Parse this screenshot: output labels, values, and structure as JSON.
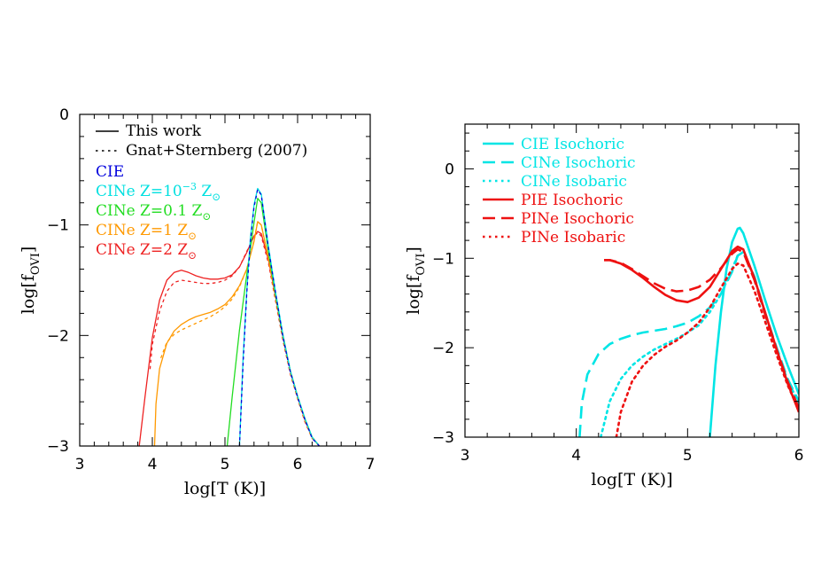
{
  "chart_data": [
    {
      "type": "line",
      "xlabel": "log[T (K)]",
      "ylabel": "log[f",
      "ylabel_sub": "OVI",
      "ylabel_close": "]",
      "xlim": [
        3,
        7
      ],
      "ylim": [
        -3,
        0
      ],
      "xticks": [
        3,
        4,
        5,
        6,
        7
      ],
      "yticks": [
        0,
        -1,
        -2,
        -3
      ],
      "legend": {
        "style_entries": [
          {
            "label": "This work",
            "dash": "solid",
            "color": "#000000"
          },
          {
            "label": "Gnat+Sternberg (2007)",
            "dash": "dotted",
            "color": "#000000"
          }
        ],
        "color_entries": [
          {
            "label": "CIE",
            "color": "#0000dd"
          },
          {
            "label": "CINe Z=10",
            "sup": "−3",
            "tail": " Z",
            "sun": "⊙",
            "color": "#00e0e0"
          },
          {
            "label": "CINe Z=0.1 Z",
            "sun": "⊙",
            "color": "#22dd22"
          },
          {
            "label": "CINe Z=1 Z",
            "sun": "⊙",
            "color": "#ff9900"
          },
          {
            "label": "CINe Z=2 Z",
            "sun": "⊙",
            "color": "#ee2222"
          }
        ]
      },
      "series": [
        {
          "color": "#ee2222",
          "dash": "solid",
          "x": [
            3.82,
            3.9,
            4.0,
            4.1,
            4.2,
            4.3,
            4.4,
            4.5,
            4.6,
            4.7,
            4.8,
            4.9,
            5.0,
            5.1,
            5.2,
            5.3,
            5.4,
            5.45,
            5.5,
            5.6,
            5.7,
            5.8,
            5.9,
            6.0,
            6.1,
            6.2,
            6.3
          ],
          "y": [
            -3.0,
            -2.55,
            -2.02,
            -1.68,
            -1.5,
            -1.43,
            -1.41,
            -1.43,
            -1.46,
            -1.48,
            -1.49,
            -1.49,
            -1.48,
            -1.45,
            -1.38,
            -1.25,
            -1.1,
            -1.06,
            -1.08,
            -1.32,
            -1.66,
            -2.02,
            -2.32,
            -2.55,
            -2.76,
            -2.92,
            -3.0
          ]
        },
        {
          "color": "#ee2222",
          "dash": "dotted",
          "x": [
            3.97,
            4.0,
            4.1,
            4.2,
            4.3,
            4.4,
            4.5,
            4.6,
            4.7,
            4.8,
            4.9,
            5.0,
            5.1,
            5.2,
            5.3,
            5.4,
            5.45,
            5.5,
            5.6,
            5.7,
            5.8,
            5.9,
            6.0,
            6.1,
            6.2,
            6.3
          ],
          "y": [
            -2.3,
            -2.08,
            -1.78,
            -1.6,
            -1.52,
            -1.5,
            -1.51,
            -1.52,
            -1.53,
            -1.53,
            -1.52,
            -1.5,
            -1.46,
            -1.38,
            -1.24,
            -1.1,
            -1.07,
            -1.1,
            -1.35,
            -1.7,
            -2.05,
            -2.35,
            -2.57,
            -2.78,
            -2.93,
            -3.0
          ]
        },
        {
          "color": "#ff9900",
          "dash": "solid",
          "x": [
            4.03,
            4.05,
            4.1,
            4.2,
            4.3,
            4.4,
            4.5,
            4.6,
            4.7,
            4.8,
            4.9,
            5.0,
            5.1,
            5.2,
            5.3,
            5.4,
            5.45,
            5.5,
            5.6,
            5.7,
            5.8,
            5.9,
            6.0,
            6.1,
            6.2,
            6.3
          ],
          "y": [
            -3.0,
            -2.62,
            -2.3,
            -2.07,
            -1.96,
            -1.9,
            -1.86,
            -1.83,
            -1.81,
            -1.79,
            -1.76,
            -1.72,
            -1.65,
            -1.55,
            -1.4,
            -1.15,
            -0.97,
            -1.0,
            -1.3,
            -1.65,
            -2.0,
            -2.32,
            -2.55,
            -2.76,
            -2.92,
            -3.0
          ]
        },
        {
          "color": "#ff9900",
          "dash": "dotted",
          "x": [
            4.12,
            4.2,
            4.3,
            4.4,
            4.5,
            4.6,
            4.7,
            4.8,
            4.9,
            5.0,
            5.1,
            5.2,
            5.3,
            5.4,
            5.45,
            5.5,
            5.6,
            5.7,
            5.8,
            5.9,
            6.0,
            6.1,
            6.2,
            6.3
          ],
          "y": [
            -2.2,
            -2.06,
            -1.99,
            -1.95,
            -1.92,
            -1.89,
            -1.86,
            -1.83,
            -1.79,
            -1.74,
            -1.67,
            -1.56,
            -1.4,
            -1.14,
            -0.97,
            -1.0,
            -1.32,
            -1.68,
            -2.03,
            -2.34,
            -2.57,
            -2.77,
            -2.93,
            -3.0
          ]
        },
        {
          "color": "#22dd22",
          "dash": "solid",
          "x": [
            5.03,
            5.1,
            5.2,
            5.3,
            5.4,
            5.45,
            5.5,
            5.6,
            5.7,
            5.8,
            5.9,
            6.0,
            6.1,
            6.2,
            6.3
          ],
          "y": [
            -3.0,
            -2.55,
            -1.95,
            -1.45,
            -0.98,
            -0.76,
            -0.8,
            -1.25,
            -1.65,
            -2.02,
            -2.32,
            -2.55,
            -2.75,
            -2.92,
            -3.0
          ]
        },
        {
          "color": "#00e0e0",
          "dash": "solid",
          "x": [
            5.2,
            5.25,
            5.3,
            5.35,
            5.4,
            5.45,
            5.5,
            5.6,
            5.7,
            5.8,
            5.9,
            6.0,
            6.1,
            6.2,
            6.3
          ],
          "y": [
            -3.0,
            -2.2,
            -1.6,
            -1.12,
            -0.82,
            -0.67,
            -0.72,
            -1.2,
            -1.62,
            -2.0,
            -2.32,
            -2.55,
            -2.75,
            -2.92,
            -3.0
          ]
        },
        {
          "color": "#0000dd",
          "dash": "dotted",
          "x": [
            5.2,
            5.25,
            5.3,
            5.35,
            5.4,
            5.45,
            5.5,
            5.6,
            5.7,
            5.8,
            5.9,
            6.0,
            6.1,
            6.2,
            6.3
          ],
          "y": [
            -3.0,
            -2.25,
            -1.62,
            -1.15,
            -0.84,
            -0.68,
            -0.73,
            -1.22,
            -1.63,
            -2.02,
            -2.33,
            -2.56,
            -2.76,
            -2.93,
            -3.0
          ]
        }
      ]
    },
    {
      "type": "line",
      "xlabel": "log[T (K)]",
      "ylabel": "log[f",
      "ylabel_sub": "OVI",
      "ylabel_close": "]",
      "xlim": [
        3,
        6
      ],
      "ylim": [
        -3,
        0.5
      ],
      "xticks": [
        3,
        4,
        5,
        6
      ],
      "yticks": [
        0,
        -1,
        -2,
        -3
      ],
      "legend": {
        "entries": [
          {
            "label": "CIE Isochoric",
            "color": "#00e5e5",
            "dash": "solid"
          },
          {
            "label": "CINe Isochoric",
            "color": "#00e5e5",
            "dash": "dashed"
          },
          {
            "label": "CINe Isobaric",
            "color": "#00e5e5",
            "dash": "dotted"
          },
          {
            "label": "PIE Isochoric",
            "color": "#ee1111",
            "dash": "solid"
          },
          {
            "label": "PINe Isochoric",
            "color": "#ee1111",
            "dash": "dashed"
          },
          {
            "label": "PINe Isobaric",
            "color": "#ee1111",
            "dash": "dotted"
          }
        ]
      },
      "series": [
        {
          "color": "#00e5e5",
          "dash": "solid",
          "x": [
            5.2,
            5.25,
            5.3,
            5.35,
            5.4,
            5.45,
            5.47,
            5.5,
            5.6,
            5.7,
            5.8,
            5.9,
            6.0
          ],
          "y": [
            -3.0,
            -2.2,
            -1.6,
            -1.12,
            -0.82,
            -0.67,
            -0.66,
            -0.72,
            -1.08,
            -1.48,
            -1.86,
            -2.2,
            -2.52
          ]
        },
        {
          "color": "#00e5e5",
          "dash": "dashed",
          "x": [
            4.03,
            4.05,
            4.1,
            4.2,
            4.3,
            4.4,
            4.5,
            4.6,
            4.7,
            4.8,
            4.9,
            5.0,
            5.1,
            5.2,
            5.3,
            5.4,
            5.45,
            5.5,
            5.6,
            5.7,
            5.8,
            5.9,
            6.0
          ],
          "y": [
            -3.0,
            -2.62,
            -2.3,
            -2.07,
            -1.96,
            -1.9,
            -1.86,
            -1.83,
            -1.81,
            -1.79,
            -1.76,
            -1.72,
            -1.65,
            -1.55,
            -1.4,
            -1.15,
            -0.97,
            -0.93,
            -1.2,
            -1.62,
            -2.0,
            -2.35,
            -2.6
          ]
        },
        {
          "color": "#00e5e5",
          "dash": "dotted",
          "x": [
            4.22,
            4.3,
            4.4,
            4.5,
            4.6,
            4.7,
            4.8,
            4.9,
            5.0,
            5.1,
            5.2,
            5.3,
            5.4,
            5.45,
            5.5,
            5.6,
            5.7,
            5.8,
            5.9,
            6.0
          ],
          "y": [
            -3.0,
            -2.6,
            -2.35,
            -2.2,
            -2.1,
            -2.02,
            -1.96,
            -1.9,
            -1.83,
            -1.75,
            -1.6,
            -1.4,
            -1.12,
            -0.97,
            -0.93,
            -1.22,
            -1.64,
            -2.02,
            -2.37,
            -2.62
          ]
        },
        {
          "color": "#ee1111",
          "dash": "solid",
          "x": [
            4.25,
            4.3,
            4.4,
            4.5,
            4.6,
            4.7,
            4.8,
            4.9,
            5.0,
            5.1,
            5.2,
            5.3,
            5.4,
            5.45,
            5.5,
            5.6,
            5.7,
            5.8,
            5.9,
            6.0
          ],
          "y": [
            -1.02,
            -1.02,
            -1.06,
            -1.13,
            -1.22,
            -1.32,
            -1.41,
            -1.47,
            -1.49,
            -1.44,
            -1.32,
            -1.12,
            -0.92,
            -0.87,
            -0.9,
            -1.22,
            -1.62,
            -2.02,
            -2.4,
            -2.72
          ]
        },
        {
          "color": "#ee1111",
          "dash": "dashed",
          "x": [
            4.25,
            4.3,
            4.4,
            4.5,
            4.6,
            4.7,
            4.8,
            4.9,
            5.0,
            5.1,
            5.2,
            5.3,
            5.4,
            5.45,
            5.5,
            5.6,
            5.7,
            5.8,
            5.9,
            6.0
          ],
          "y": [
            -1.02,
            -1.02,
            -1.05,
            -1.12,
            -1.2,
            -1.28,
            -1.34,
            -1.37,
            -1.36,
            -1.32,
            -1.24,
            -1.11,
            -0.95,
            -0.9,
            -0.93,
            -1.24,
            -1.64,
            -2.02,
            -2.38,
            -2.68
          ]
        },
        {
          "color": "#ee1111",
          "dash": "dotted",
          "x": [
            4.36,
            4.4,
            4.5,
            4.6,
            4.7,
            4.8,
            4.9,
            5.0,
            5.1,
            5.2,
            5.3,
            5.4,
            5.45,
            5.5,
            5.6,
            5.7,
            5.8,
            5.9,
            6.0
          ],
          "y": [
            -3.0,
            -2.72,
            -2.38,
            -2.2,
            -2.08,
            -1.99,
            -1.92,
            -1.83,
            -1.72,
            -1.55,
            -1.33,
            -1.12,
            -1.06,
            -1.08,
            -1.36,
            -1.72,
            -2.08,
            -2.42,
            -2.7
          ]
        }
      ]
    }
  ]
}
